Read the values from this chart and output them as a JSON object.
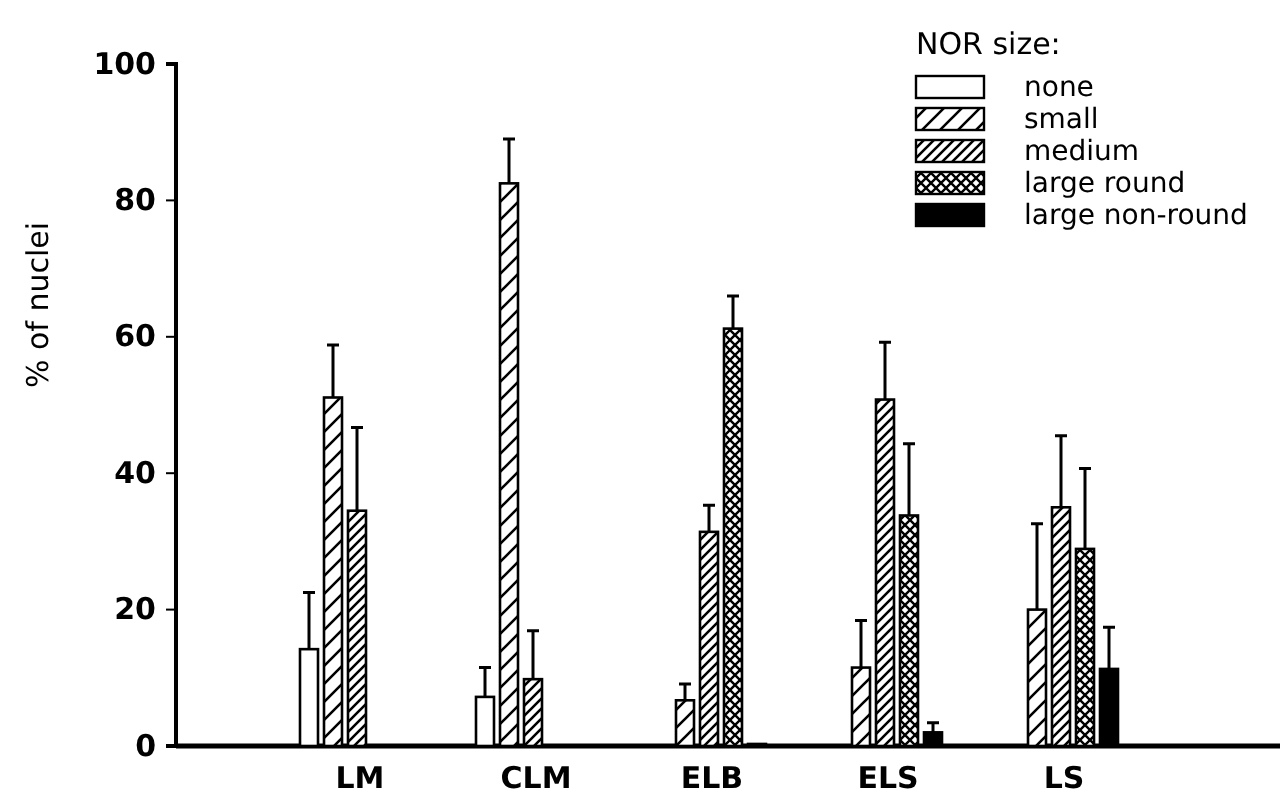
{
  "chart_data": {
    "type": "bar",
    "ylabel": "% of nuclei",
    "legend_title": "NOR size:",
    "legend": "top right",
    "categories": [
      "LM",
      "CLM",
      "ELB",
      "ELS",
      "LS"
    ],
    "ylim": [
      0,
      100
    ],
    "yticks": [
      0,
      20,
      40,
      60,
      80,
      100
    ],
    "series": [
      {
        "name": "none",
        "color": "#ffffff",
        "values": [
          14.2,
          7.2,
          null,
          null,
          null
        ],
        "errors": [
          [
            14.2,
            22.5
          ],
          [
            7.2,
            11.5
          ],
          null,
          null,
          null
        ]
      },
      {
        "name": "small",
        "color": "#ffffff",
        "values": [
          51.1,
          82.5,
          6.7,
          11.5,
          20.0
        ],
        "errors": [
          [
            51.1,
            58.8
          ],
          [
            82.5,
            89
          ],
          [
            6.7,
            9.1
          ],
          [
            11.5,
            18.4
          ],
          [
            20.0,
            32.6
          ]
        ]
      },
      {
        "name": "medium",
        "color": "#ffffff",
        "values": [
          34.5,
          9.8,
          31.4,
          50.8,
          35.0
        ],
        "errors": [
          [
            34.5,
            46.7
          ],
          [
            9.8,
            16.9
          ],
          [
            31.4,
            35.3
          ],
          [
            50.8,
            59.2
          ],
          [
            35.0,
            45.5
          ]
        ]
      },
      {
        "name": "large round",
        "color": "#ffffff",
        "values": [
          null,
          null,
          61.2,
          33.8,
          28.9
        ],
        "errors": [
          null,
          null,
          [
            61.2,
            66
          ],
          [
            33.8,
            44.3
          ],
          [
            28.9,
            40.7
          ]
        ]
      },
      {
        "name": "large non-round",
        "color": "#000000",
        "values": [
          null,
          null,
          0.3,
          2.0,
          11.3
        ],
        "errors": [
          null,
          null,
          null,
          [
            2.0,
            3.4
          ],
          [
            11.3,
            17.4
          ]
        ]
      }
    ]
  }
}
